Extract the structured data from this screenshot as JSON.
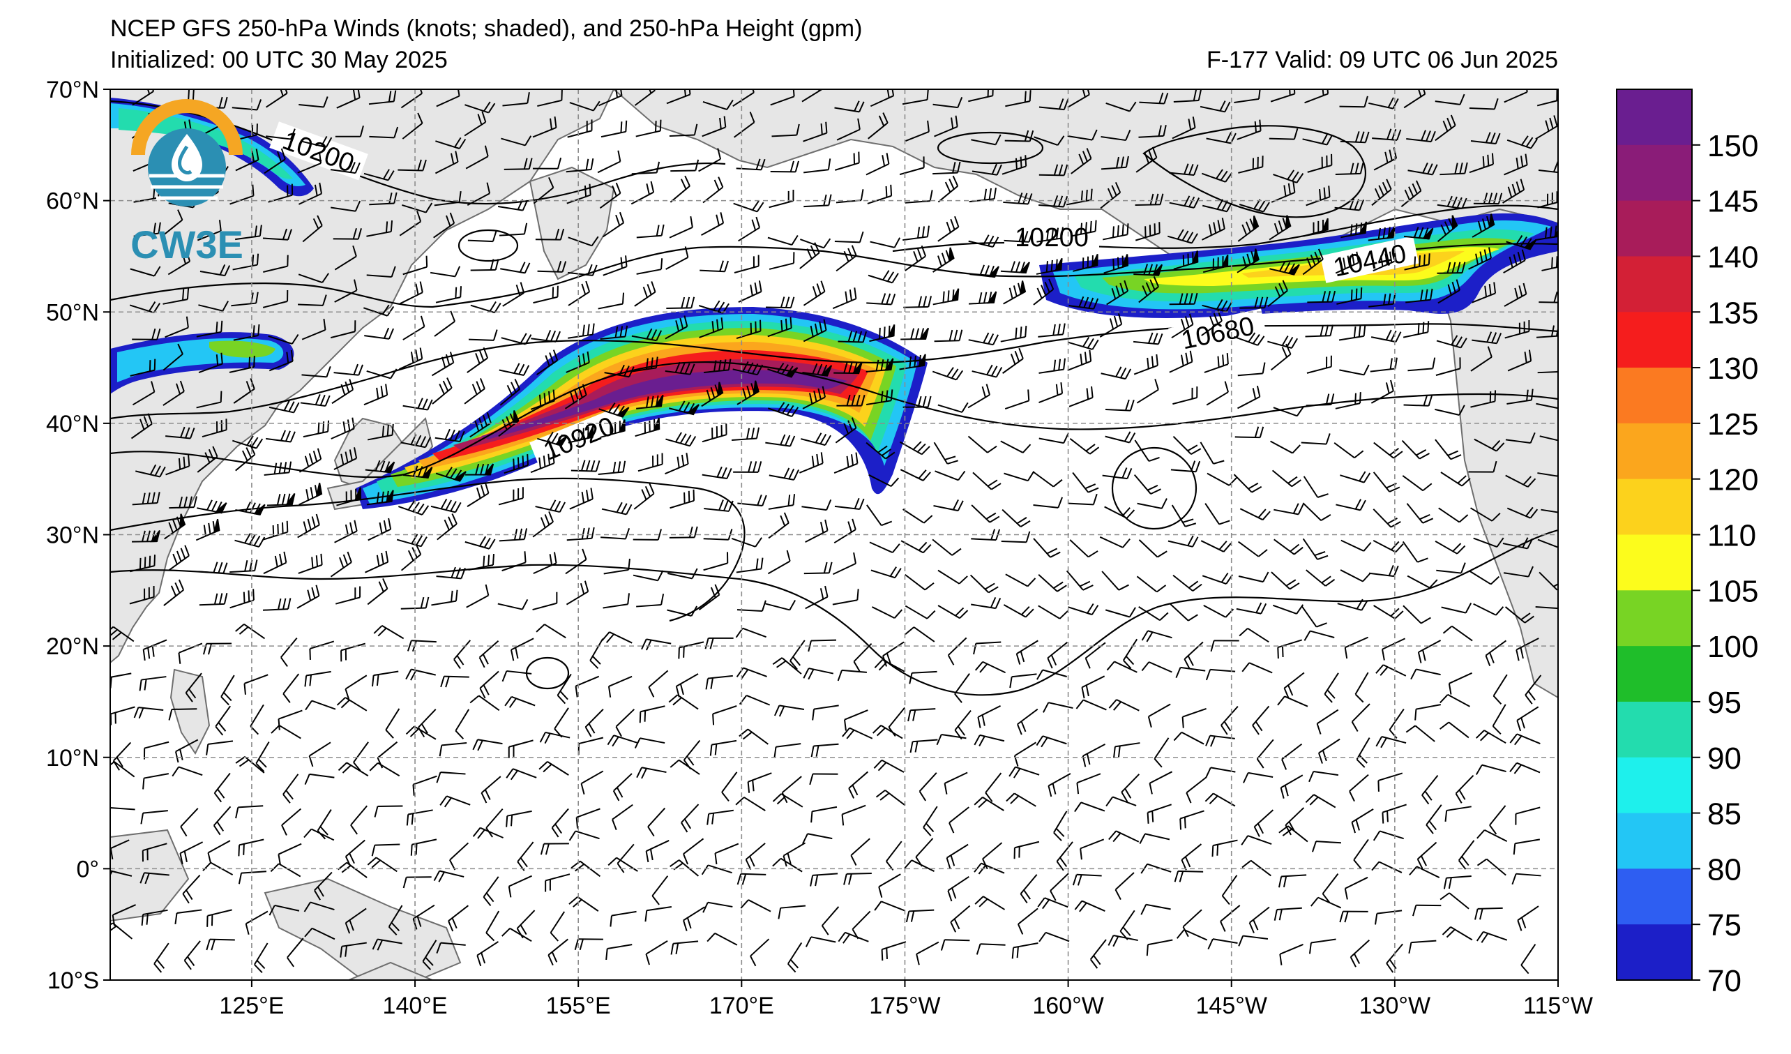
{
  "header": {
    "title": "NCEP GFS 250-hPa Winds (knots; shaded), and 250-hPa Height (gpm)",
    "initialized": "Initialized: 00 UTC 30 May 2025",
    "valid": "F-177  Valid: 09 UTC 06 Jun 2025"
  },
  "logo": {
    "text": "CW3E",
    "colors": {
      "arc": "#f5a623",
      "teal": "#2b8fb3"
    }
  },
  "map": {
    "lon_range": [
      112,
      245
    ],
    "lat_range": [
      -10,
      70
    ],
    "lat_labels": [
      "70°N",
      "60°N",
      "50°N",
      "40°N",
      "30°N",
      "20°N",
      "10°N",
      "0°",
      "10°S"
    ],
    "lon_labels": [
      "125°E",
      "140°E",
      "155°E",
      "170°E",
      "175°W",
      "160°W",
      "145°W",
      "130°W",
      "115°W"
    ],
    "land_color": "#e6e6e6",
    "coast_color": "#6e6e6e",
    "grid_style": "dashed gray"
  },
  "contours": {
    "labels": [
      "10200",
      "10200",
      "10440",
      "10680",
      "10920"
    ]
  },
  "colorbar": {
    "ticks": [
      "70",
      "75",
      "80",
      "85",
      "90",
      "95",
      "100",
      "105",
      "110",
      "120",
      "125",
      "130",
      "135",
      "140",
      "145",
      "150"
    ],
    "colors": [
      "#1c1fc8",
      "#2e5ef2",
      "#23c6f5",
      "#1ef0ec",
      "#23dcae",
      "#1fbe2a",
      "#78d424",
      "#fcfc1c",
      "#fcd21c",
      "#fba61d",
      "#fb7a21",
      "#f51d1d",
      "#d32036",
      "#a81c5a",
      "#8a1c78",
      "#6a1e90"
    ]
  }
}
